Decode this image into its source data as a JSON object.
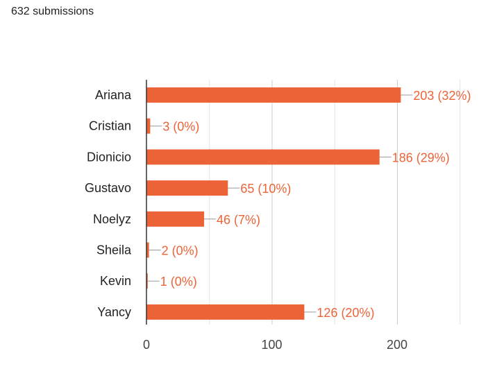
{
  "header": {
    "submissions": "632 submissions"
  },
  "chart_data": {
    "type": "bar",
    "orientation": "horizontal",
    "categories": [
      "Ariana",
      "Cristian",
      "Dionicio",
      "Gustavo",
      "Noelyz",
      "Sheila",
      "Kevin",
      "Yancy"
    ],
    "values": [
      203,
      3,
      186,
      65,
      46,
      2,
      1,
      126
    ],
    "data_labels": [
      "203 (32%)",
      "3 (0%)",
      "186 (29%)",
      "65 (10%)",
      "46 (7%)",
      "2 (0%)",
      "1 (0%)",
      "126 (20%)"
    ],
    "xlim": [
      0,
      250
    ],
    "x_ticks": [
      "0",
      "100",
      "200"
    ],
    "x_tick_values": [
      0,
      100,
      200
    ],
    "gridlines": [
      50,
      100,
      150,
      200,
      250
    ],
    "grid": true,
    "bar_color": "#ec6338",
    "label_color": "#ec6338"
  }
}
